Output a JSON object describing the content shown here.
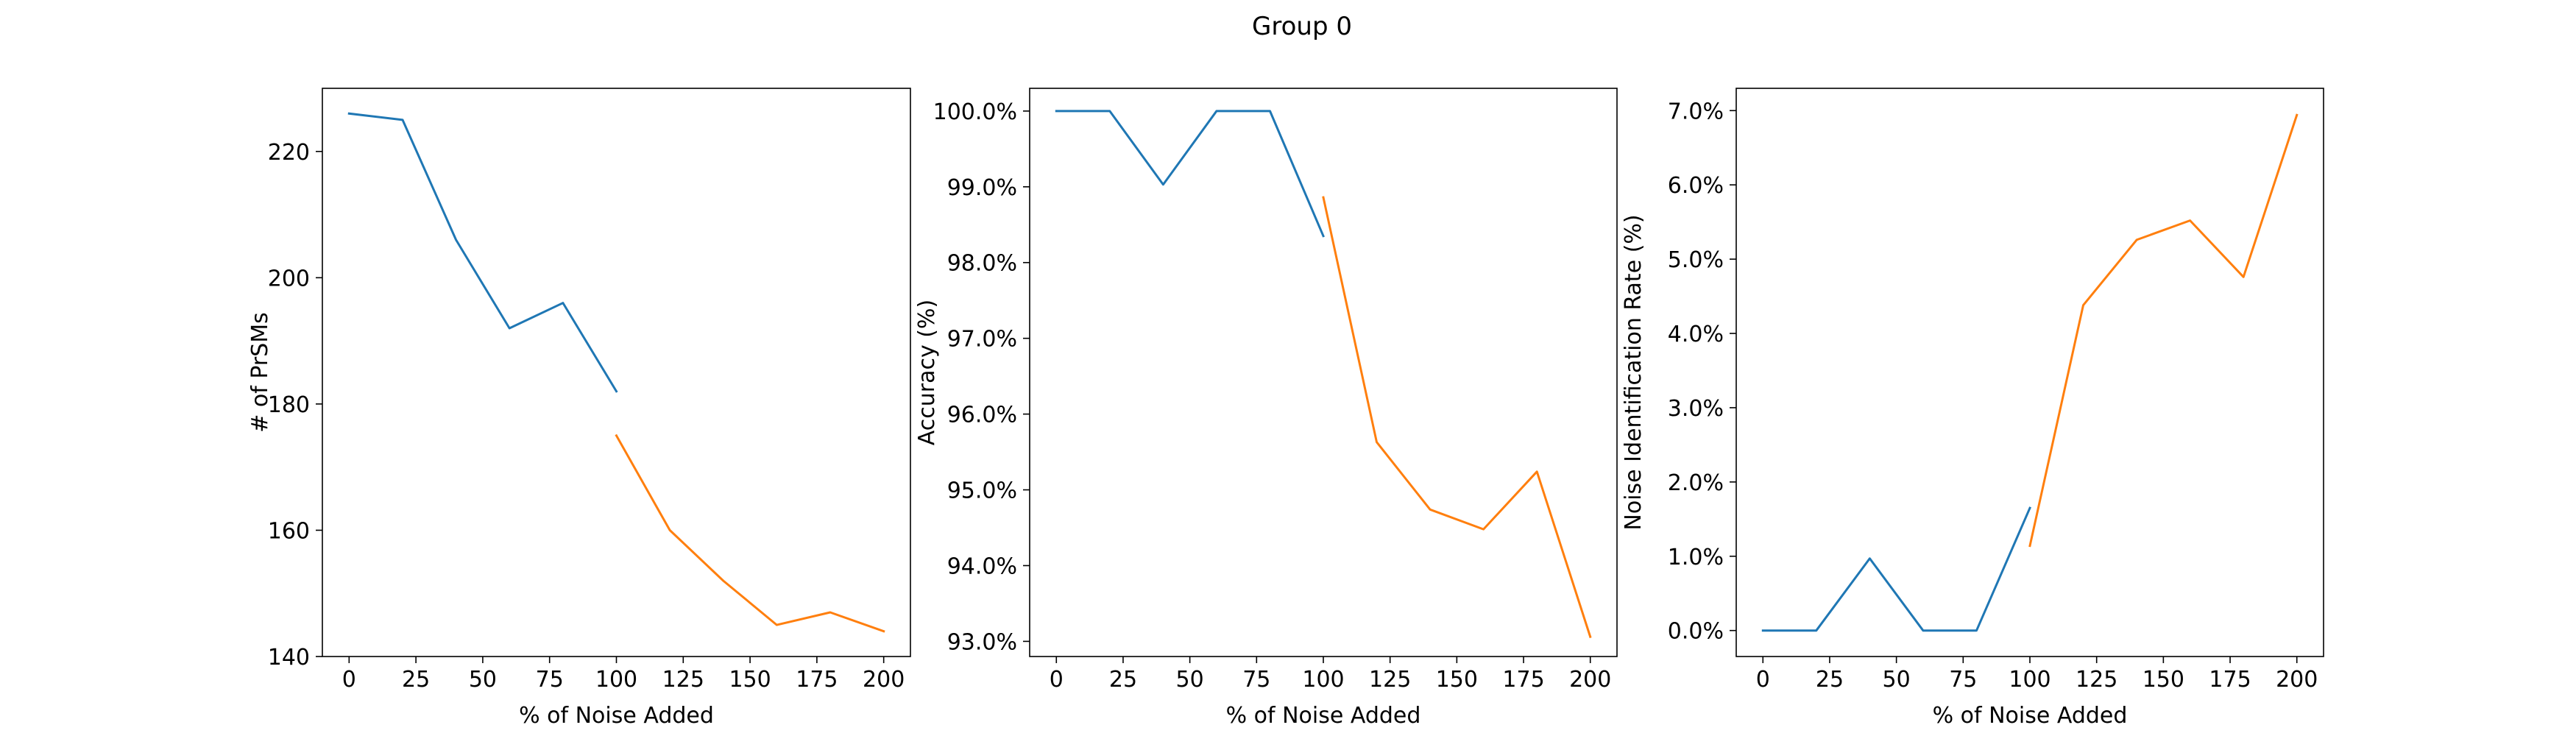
{
  "figure": {
    "title": "Group 0"
  },
  "chart_data": [
    {
      "type": "line",
      "xlabel": "% of Noise Added",
      "ylabel": "# of PrSMs",
      "xlim": [
        -10,
        210
      ],
      "ylim": [
        140,
        230
      ],
      "xticks": [
        0,
        25,
        50,
        75,
        100,
        125,
        150,
        175,
        200
      ],
      "xtick_labels": [
        "0",
        "25",
        "50",
        "75",
        "100",
        "125",
        "150",
        "175",
        "200"
      ],
      "yticks": [
        140,
        160,
        180,
        200,
        220
      ],
      "ytick_labels": [
        "140",
        "160",
        "180",
        "200",
        "220"
      ],
      "grid": false,
      "series": [
        {
          "color": "#1f77b4",
          "x": [
            0,
            20,
            40,
            60,
            80,
            100
          ],
          "y": [
            226,
            225,
            206,
            192,
            196,
            182
          ]
        },
        {
          "color": "#ff7f0e",
          "x": [
            100,
            120,
            140,
            160,
            180,
            200
          ],
          "y": [
            175,
            160,
            152,
            145,
            147,
            144
          ]
        }
      ]
    },
    {
      "type": "line",
      "xlabel": "% of Noise Added",
      "ylabel": "Accuracy (%)",
      "xlim": [
        -10,
        210
      ],
      "ylim": [
        92.8,
        100.3
      ],
      "xticks": [
        0,
        25,
        50,
        75,
        100,
        125,
        150,
        175,
        200
      ],
      "xtick_labels": [
        "0",
        "25",
        "50",
        "75",
        "100",
        "125",
        "150",
        "175",
        "200"
      ],
      "yticks": [
        93,
        94,
        95,
        96,
        97,
        98,
        99,
        100
      ],
      "ytick_labels": [
        "93.0%",
        "94.0%",
        "95.0%",
        "96.0%",
        "97.0%",
        "98.0%",
        "99.0%",
        "100.0%"
      ],
      "grid": false,
      "series": [
        {
          "color": "#1f77b4",
          "x": [
            0,
            20,
            40,
            60,
            80,
            100
          ],
          "y": [
            100.0,
            100.0,
            99.03,
            100.0,
            100.0,
            98.35
          ]
        },
        {
          "color": "#ff7f0e",
          "x": [
            100,
            120,
            140,
            160,
            180,
            200
          ],
          "y": [
            98.86,
            95.63,
            94.74,
            94.48,
            95.24,
            93.06
          ]
        }
      ]
    },
    {
      "type": "line",
      "xlabel": "% of Noise Added",
      "ylabel": "Noise Identification Rate (%)",
      "xlim": [
        -10,
        210
      ],
      "ylim": [
        -0.35,
        7.3
      ],
      "xticks": [
        0,
        25,
        50,
        75,
        100,
        125,
        150,
        175,
        200
      ],
      "xtick_labels": [
        "0",
        "25",
        "50",
        "75",
        "100",
        "125",
        "150",
        "175",
        "200"
      ],
      "yticks": [
        0,
        1,
        2,
        3,
        4,
        5,
        6,
        7
      ],
      "ytick_labels": [
        "0.0%",
        "1.0%",
        "2.0%",
        "3.0%",
        "4.0%",
        "5.0%",
        "6.0%",
        "7.0%"
      ],
      "grid": false,
      "series": [
        {
          "color": "#1f77b4",
          "x": [
            0,
            20,
            40,
            60,
            80,
            100
          ],
          "y": [
            0.0,
            0.0,
            0.97,
            0.0,
            0.0,
            1.65
          ]
        },
        {
          "color": "#ff7f0e",
          "x": [
            100,
            120,
            140,
            160,
            180,
            200
          ],
          "y": [
            1.14,
            4.38,
            5.26,
            5.52,
            4.76,
            6.94
          ]
        }
      ]
    }
  ]
}
